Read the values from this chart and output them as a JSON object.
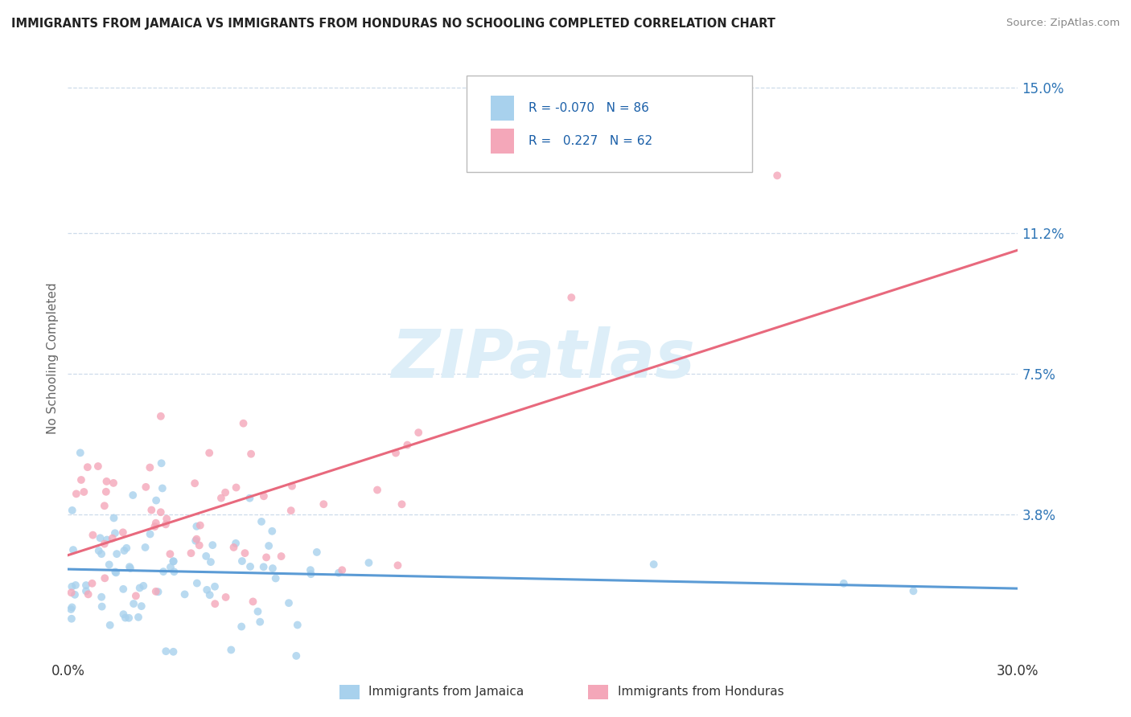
{
  "title": "IMMIGRANTS FROM JAMAICA VS IMMIGRANTS FROM HONDURAS NO SCHOOLING COMPLETED CORRELATION CHART",
  "source": "Source: ZipAtlas.com",
  "ylabel": "No Schooling Completed",
  "xlim": [
    0.0,
    0.3
  ],
  "ylim": [
    0.0,
    0.158
  ],
  "xtick_positions": [
    0.0,
    0.3
  ],
  "xticklabels": [
    "0.0%",
    "30.0%"
  ],
  "ytick_positions": [
    0.038,
    0.075,
    0.112,
    0.15
  ],
  "yticklabels": [
    "3.8%",
    "7.5%",
    "11.2%",
    "15.0%"
  ],
  "r_jamaica": -0.07,
  "n_jamaica": 86,
  "r_honduras": 0.227,
  "n_honduras": 62,
  "color_jamaica": "#a8d1ed",
  "color_honduras": "#f4a7b9",
  "line_color_jamaica": "#5b9bd5",
  "line_color_honduras": "#e8697d",
  "grid_color": "#c8d8e8",
  "text_color_blue": "#2e75b6",
  "title_color": "#222222",
  "source_color": "#888888",
  "ylabel_color": "#666666",
  "watermark_color": "#ddeef8",
  "legend_text_color": "#1a5fa8"
}
